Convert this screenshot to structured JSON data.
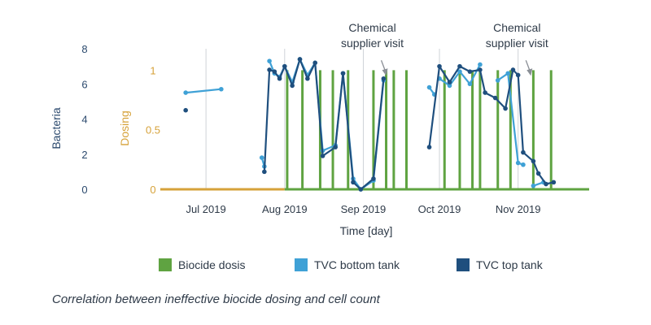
{
  "chart_data": {
    "type": "line",
    "xlabel": "Time [day]",
    "ylabel_left": "Bacteria",
    "ylabel_right": "Dosing",
    "x_range": [
      "2019-06-13",
      "2019-11-29"
    ],
    "ylim_left": [
      0,
      8
    ],
    "ylim_right": [
      0,
      1.18
    ],
    "yticks_left": [
      0,
      2,
      4,
      6,
      8
    ],
    "yticks_right": [
      0,
      0.5,
      1
    ],
    "xticks": [
      {
        "date": "2019-07-01",
        "label": "Jul 2019"
      },
      {
        "date": "2019-08-01",
        "label": "Aug 2019"
      },
      {
        "date": "2019-09-01",
        "label": "Sep 2019"
      },
      {
        "date": "2019-10-01",
        "label": "Oct 2019"
      },
      {
        "date": "2019-11-01",
        "label": "Nov 2019"
      }
    ],
    "grid_x": true,
    "legend_position": "bottom",
    "colors": {
      "biocide": "#5fa341",
      "tvc_bottom": "#3fa1d6",
      "tvc_top": "#1f4f7e",
      "dosing_axis": "#d6a23a",
      "bacteria_axis": "#2c4a6e"
    },
    "series": [
      {
        "name": "Biocide dosis",
        "kind": "bar",
        "axis": "right",
        "dose_dates": [
          "2019-08-02",
          "2019-08-08",
          "2019-08-15",
          "2019-08-20",
          "2019-08-26",
          "2019-09-05",
          "2019-09-10",
          "2019-09-13",
          "2019-09-18",
          "2019-10-03",
          "2019-10-09",
          "2019-10-14",
          "2019-10-17",
          "2019-10-24",
          "2019-10-29",
          "2019-11-07",
          "2019-11-14"
        ],
        "dose_value": 1,
        "baseline": [
          {
            "start": "2019-06-13",
            "end": "2019-08-01",
            "value": 0,
            "color": "orange"
          },
          {
            "start": "2019-08-01",
            "end": "2019-11-29",
            "value": 0,
            "color": "green"
          }
        ]
      },
      {
        "name": "TVC bottom tank",
        "axis": "left",
        "segments": [
          [
            [
              "2019-06-23",
              5.5
            ],
            [
              "2019-07-07",
              5.7
            ]
          ],
          [
            [
              "2019-07-23",
              1.8
            ],
            [
              "2019-07-24",
              1.3
            ]
          ],
          [
            [
              "2019-07-26",
              7.3
            ],
            [
              "2019-07-28",
              6.6
            ],
            [
              "2019-07-30",
              6.4
            ],
            [
              "2019-08-01",
              7.0
            ],
            [
              "2019-08-04",
              6.1
            ],
            [
              "2019-08-07",
              7.4
            ],
            [
              "2019-08-10",
              6.5
            ],
            [
              "2019-08-13",
              7.2
            ],
            [
              "2019-08-16",
              2.2
            ],
            [
              "2019-08-21",
              2.5
            ],
            [
              "2019-08-24",
              6.6
            ],
            [
              "2019-08-28",
              0.6
            ],
            [
              "2019-08-31",
              0.0
            ],
            [
              "2019-09-05",
              0.5
            ],
            [
              "2019-09-09",
              6.2
            ]
          ],
          [
            [
              "2019-09-27",
              5.8
            ],
            [
              "2019-09-29",
              5.4
            ]
          ],
          [
            [
              "2019-10-01",
              6.3
            ],
            [
              "2019-10-05",
              5.9
            ],
            [
              "2019-10-09",
              6.7
            ],
            [
              "2019-10-13",
              6.0
            ],
            [
              "2019-10-17",
              7.1
            ]
          ],
          [
            [
              "2019-10-24",
              6.2
            ],
            [
              "2019-10-28",
              6.6
            ],
            [
              "2019-11-01",
              1.5
            ],
            [
              "2019-11-03",
              1.4
            ]
          ],
          [
            [
              "2019-11-07",
              0.2
            ],
            [
              "2019-11-11",
              0.4
            ]
          ]
        ]
      },
      {
        "name": "TVC top tank",
        "axis": "left",
        "segments": [
          [
            [
              "2019-06-23",
              4.5
            ]
          ],
          [
            [
              "2019-07-24",
              1.0
            ],
            [
              "2019-07-26",
              6.8
            ],
            [
              "2019-07-28",
              6.7
            ],
            [
              "2019-07-30",
              6.3
            ],
            [
              "2019-08-01",
              7.0
            ],
            [
              "2019-08-04",
              5.9
            ],
            [
              "2019-08-07",
              7.4
            ],
            [
              "2019-08-10",
              6.3
            ],
            [
              "2019-08-13",
              7.2
            ],
            [
              "2019-08-16",
              1.9
            ],
            [
              "2019-08-21",
              2.4
            ],
            [
              "2019-08-24",
              6.6
            ],
            [
              "2019-08-28",
              0.4
            ],
            [
              "2019-08-31",
              0.0
            ],
            [
              "2019-09-05",
              0.6
            ],
            [
              "2019-09-09",
              6.3
            ]
          ],
          [
            [
              "2019-09-27",
              2.4
            ],
            [
              "2019-10-01",
              7.0
            ],
            [
              "2019-10-05",
              6.1
            ],
            [
              "2019-10-09",
              7.0
            ],
            [
              "2019-10-13",
              6.7
            ],
            [
              "2019-10-17",
              6.8
            ],
            [
              "2019-10-19",
              5.5
            ],
            [
              "2019-10-23",
              5.2
            ],
            [
              "2019-10-27",
              4.6
            ],
            [
              "2019-10-30",
              6.8
            ],
            [
              "2019-11-01",
              6.5
            ],
            [
              "2019-11-03",
              2.1
            ],
            [
              "2019-11-07",
              1.6
            ],
            [
              "2019-11-09",
              0.9
            ],
            [
              "2019-11-12",
              0.3
            ],
            [
              "2019-11-15",
              0.4
            ]
          ]
        ]
      }
    ],
    "annotations": [
      {
        "text": [
          "Chemical",
          "supplier visit"
        ],
        "arrow_date": "2019-09-10",
        "arrow_value": 6.6
      },
      {
        "text": [
          "Chemical",
          "supplier visit"
        ],
        "arrow_date": "2019-11-06",
        "arrow_value": 6.6
      }
    ]
  },
  "legend": {
    "items": [
      {
        "label": "Biocide dosis",
        "color": "#5fa341"
      },
      {
        "label": "TVC bottom tank",
        "color": "#3fa1d6"
      },
      {
        "label": "TVC top tank",
        "color": "#1f4f7e"
      }
    ]
  },
  "caption": "Correlation between ineffective biocide dosing and cell count"
}
